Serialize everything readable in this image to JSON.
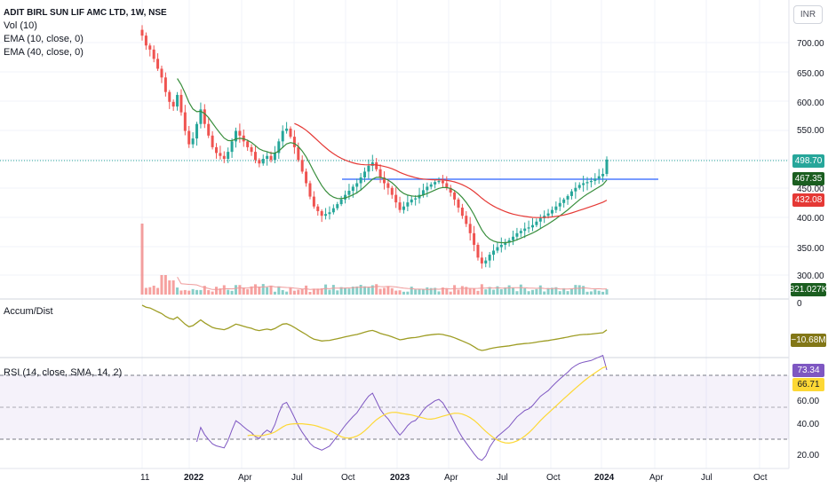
{
  "header": {
    "symbol_line": "ADIT BIRL SUN LIF AMC LTD, 1W, NSE",
    "vol_label": "Vol (10)",
    "ema1_label": "EMA (10, close, 0)",
    "ema2_label": "EMA (40, close, 0)"
  },
  "currency_button": "INR",
  "accum_label": "Accum/Dist",
  "rsi_label": "RSI (14, close, SMA, 14, 2)",
  "price_axis": {
    "ticks": [
      "700.00",
      "650.00",
      "600.00",
      "550.00",
      "450.00",
      "400.00",
      "350.00",
      "300.00"
    ]
  },
  "accum_axis": {
    "ticks": [
      "0"
    ]
  },
  "rsi_axis": {
    "ticks": [
      "60.00",
      "40.00",
      "20.00"
    ]
  },
  "time_axis": {
    "ticks": [
      "11",
      "2022",
      "Apr",
      "Jul",
      "Oct",
      "2023",
      "Apr",
      "Jul",
      "Oct",
      "2024",
      "Apr",
      "Jul",
      "Oct"
    ]
  },
  "price_tags": {
    "last": "498.70",
    "ema10": "467.35",
    "ema40": "432.08",
    "volume": "821.027K",
    "accum": "−10.68M",
    "rsi": "73.34",
    "rsi_ma": "66.71"
  },
  "colors": {
    "up": "#26a69a",
    "down": "#ef5350",
    "ema10": "#388e3c",
    "ema40": "#e53935",
    "hline": "#2962ff",
    "accum": "#9e9d24",
    "rsi": "#7e57c2",
    "rsi_ma": "#fdd835",
    "last_tag": "#26a69a",
    "ema10_tag": "#1b5e20",
    "ema40_tag": "#e53935",
    "volume_tag": "#1b5e20",
    "accum_tag": "#827717",
    "rsi_tag": "#7e57c2",
    "rsi_ma_tag": "#fdd835"
  },
  "chart_data": {
    "type": "candlestick",
    "title": "ADIT BIRL SUN LIF AMC LTD, 1W, NSE",
    "price_range": [
      280,
      730
    ],
    "horizontal_line": 462,
    "closes": [
      712,
      695,
      688,
      672,
      655,
      640,
      615,
      598,
      590,
      610,
      580,
      548,
      525,
      535,
      560,
      585,
      560,
      540,
      520,
      510,
      505,
      500,
      512,
      530,
      548,
      540,
      530,
      520,
      512,
      498,
      492,
      500,
      505,
      498,
      510,
      530,
      548,
      552,
      538,
      520,
      498,
      478,
      458,
      435,
      418,
      410,
      402,
      405,
      408,
      415,
      422,
      430,
      438,
      445,
      452,
      458,
      468,
      478,
      488,
      494,
      482,
      468,
      458,
      450,
      438,
      425,
      412,
      418,
      425,
      430,
      432,
      438,
      446,
      452,
      456,
      460,
      462,
      458,
      450,
      442,
      430,
      416,
      402,
      388,
      372,
      352,
      330,
      320,
      325,
      335,
      342,
      348,
      352,
      356,
      360,
      366,
      372,
      376,
      380,
      382,
      386,
      392,
      398,
      402,
      406,
      412,
      418,
      424,
      430,
      436,
      444,
      450,
      455,
      458,
      460,
      462,
      466,
      470,
      474,
      498.7
    ],
    "ema10": null,
    "volume_note": "volume bars shown in lower strip of price pane",
    "last_price": 498.7,
    "ema10_last": 467.35,
    "ema40_last": 432.08,
    "volume_last": "821.027K",
    "accum_last": "−10.68M",
    "rsi_last": 73.34,
    "rsi_ma_last": 66.71,
    "rsi_bands": [
      70,
      50,
      30
    ]
  }
}
